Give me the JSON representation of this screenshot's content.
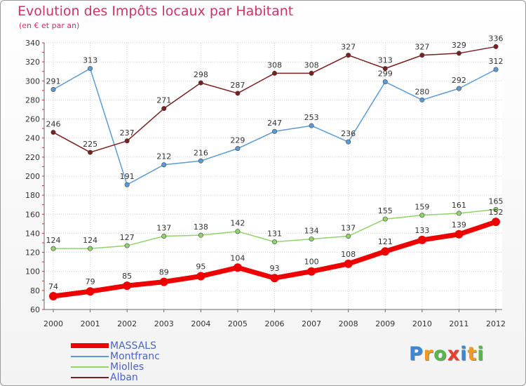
{
  "chart_data": {
    "type": "line",
    "title": "Evolution des Impôts locaux par Habitant",
    "subtitle": "(en € et par an)",
    "xlabel": "",
    "ylabel": "",
    "categories": [
      "2000",
      "2001",
      "2002",
      "2003",
      "2004",
      "2005",
      "2006",
      "2007",
      "2008",
      "2009",
      "2010",
      "2011",
      "2012"
    ],
    "ylim": [
      60,
      340
    ],
    "yticks": [
      60,
      80,
      100,
      120,
      140,
      160,
      180,
      200,
      220,
      240,
      260,
      280,
      300,
      320,
      340
    ],
    "grid": true,
    "legend_position": "bottom-left",
    "series": [
      {
        "name": "MASSALS",
        "color": "#ee0000",
        "values": [
          74,
          79,
          85,
          89,
          95,
          104,
          93,
          100,
          108,
          121,
          133,
          139,
          152
        ]
      },
      {
        "name": "Montfranc",
        "color": "#5b9bd5",
        "values": [
          291,
          313,
          191,
          212,
          216,
          229,
          247,
          253,
          236,
          299,
          280,
          292,
          312
        ]
      },
      {
        "name": "Miolles",
        "color": "#8fd46a",
        "values": [
          124,
          124,
          127,
          137,
          138,
          142,
          131,
          134,
          137,
          155,
          159,
          161,
          165
        ]
      },
      {
        "name": "Alban",
        "color": "#7a1f1f",
        "values": [
          246,
          225,
          237,
          271,
          298,
          287,
          308,
          308,
          327,
          313,
          327,
          329,
          336
        ]
      }
    ]
  },
  "logo": {
    "letters": [
      "P",
      "r",
      "o",
      "x",
      "i",
      "t",
      "i"
    ],
    "colors": [
      "#3a87d6",
      "#f29a1c",
      "#56b848",
      "#e8402d",
      "#3a87d6",
      "#f29a1c",
      "#56b848"
    ]
  }
}
